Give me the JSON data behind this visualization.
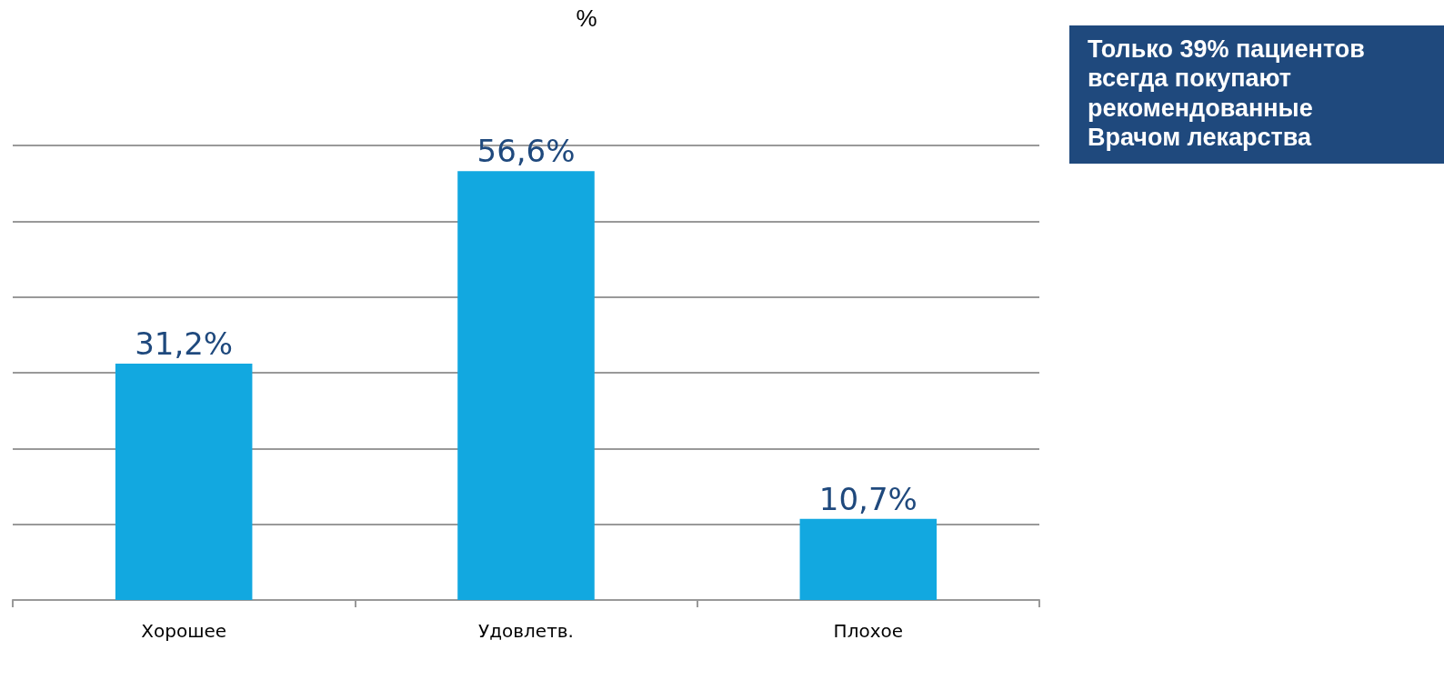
{
  "chart_data": {
    "type": "bar",
    "title": "%",
    "categories": [
      "Хорошее",
      "Удовлетв.",
      "Плохое"
    ],
    "values": [
      31.2,
      56.6,
      10.7
    ],
    "color": "#12a8e0",
    "value_labels": [
      "31,2%",
      "56,6%",
      "10,7%"
    ],
    "ylim": [
      0,
      60
    ],
    "yticks": [
      0,
      10,
      20,
      30,
      40,
      50,
      60
    ],
    "grid": "y",
    "tick_labels": "x",
    "annotations": [
      "Только 39% пациентов всегда покупают рекомендованные Врачом лекарства"
    ]
  }
}
